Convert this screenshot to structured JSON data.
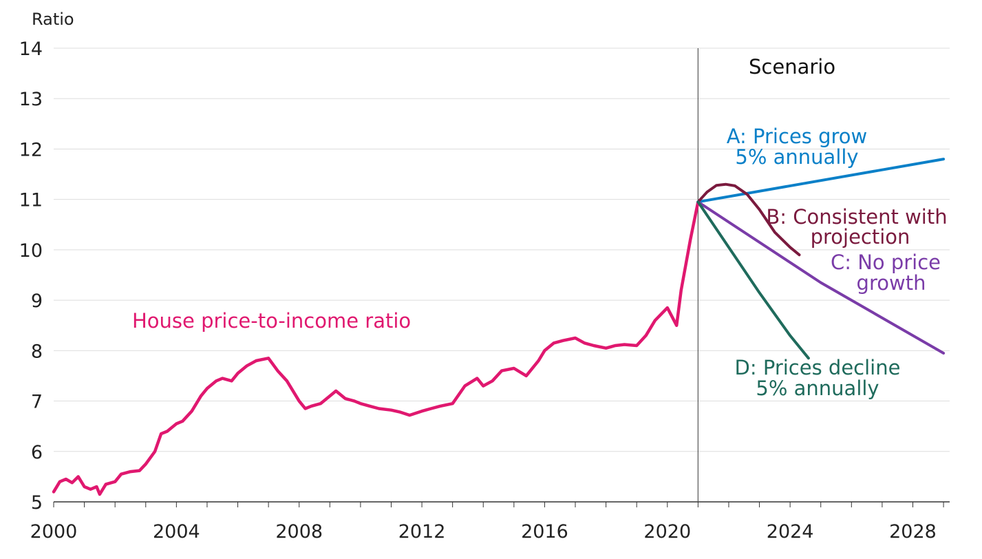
{
  "chart_data": {
    "type": "line",
    "title": "",
    "ylabel": "Ratio",
    "xlabel": "",
    "ylim": [
      5,
      14
    ],
    "xlim": [
      2000,
      2029.2
    ],
    "yticks": [
      "5",
      "6",
      "7",
      "8",
      "9",
      "10",
      "11",
      "12",
      "13",
      "14"
    ],
    "xticks": [
      "2000",
      "2004",
      "2008",
      "2012",
      "2016",
      "2020",
      "2024",
      "2028"
    ],
    "grid": true,
    "scenario_label": "Scenario",
    "scenario_start": 2021.0,
    "colors": {
      "history": "#e0186f",
      "A": "#0a80c8",
      "B": "#7a1a3e",
      "C": "#7a3ca8",
      "D": "#1f6b5c",
      "divider": "#555555",
      "grid": "#dddddd",
      "axis": "#333333"
    },
    "labels": {
      "history": "House price-to-income ratio",
      "A1": "A: Prices grow",
      "A2": "5% annually",
      "B1": "B: Consistent with",
      "B2": "projection",
      "C1": "C: No price",
      "C2": "growth",
      "D1": "D: Prices decline",
      "D2": "5% annually"
    },
    "series": [
      {
        "id": "history",
        "x": [
          2000.0,
          2000.2,
          2000.4,
          2000.6,
          2000.8,
          2001.0,
          2001.2,
          2001.4,
          2001.5,
          2001.7,
          2002.0,
          2002.2,
          2002.5,
          2002.8,
          2003.0,
          2003.3,
          2003.5,
          2003.7,
          2004.0,
          2004.2,
          2004.5,
          2004.8,
          2005.0,
          2005.3,
          2005.5,
          2005.8,
          2006.0,
          2006.3,
          2006.6,
          2007.0,
          2007.3,
          2007.6,
          2008.0,
          2008.2,
          2008.4,
          2008.7,
          2009.0,
          2009.2,
          2009.5,
          2009.8,
          2010.0,
          2010.3,
          2010.6,
          2011.0,
          2011.3,
          2011.6,
          2012.0,
          2012.3,
          2012.6,
          2013.0,
          2013.4,
          2013.8,
          2014.0,
          2014.3,
          2014.6,
          2015.0,
          2015.4,
          2015.8,
          2016.0,
          2016.3,
          2016.6,
          2017.0,
          2017.3,
          2017.6,
          2018.0,
          2018.3,
          2018.6,
          2019.0,
          2019.3,
          2019.6,
          2020.0,
          2020.3,
          2020.45,
          2020.6,
          2020.75,
          2021.0
        ],
        "y": [
          5.2,
          5.4,
          5.45,
          5.38,
          5.5,
          5.3,
          5.25,
          5.3,
          5.15,
          5.35,
          5.4,
          5.55,
          5.6,
          5.62,
          5.75,
          6.0,
          6.35,
          6.4,
          6.55,
          6.6,
          6.8,
          7.1,
          7.25,
          7.4,
          7.45,
          7.4,
          7.55,
          7.7,
          7.8,
          7.85,
          7.6,
          7.4,
          7.0,
          6.85,
          6.9,
          6.95,
          7.1,
          7.2,
          7.05,
          7.0,
          6.95,
          6.9,
          6.85,
          6.82,
          6.78,
          6.72,
          6.8,
          6.85,
          6.9,
          6.95,
          7.3,
          7.45,
          7.3,
          7.4,
          7.6,
          7.65,
          7.5,
          7.8,
          8.0,
          8.15,
          8.2,
          8.25,
          8.15,
          8.1,
          8.05,
          8.1,
          8.12,
          8.1,
          8.3,
          8.6,
          8.85,
          8.5,
          9.2,
          9.7,
          10.2,
          10.95
        ]
      },
      {
        "id": "A",
        "x": [
          2021.0,
          2029.0
        ],
        "y": [
          10.95,
          11.8
        ]
      },
      {
        "id": "B",
        "x": [
          2021.0,
          2021.3,
          2021.6,
          2021.9,
          2022.2,
          2022.6,
          2023.0,
          2023.5,
          2024.0,
          2024.3
        ],
        "y": [
          10.95,
          11.15,
          11.28,
          11.3,
          11.27,
          11.1,
          10.8,
          10.35,
          10.05,
          9.9
        ]
      },
      {
        "id": "C",
        "x": [
          2021.0,
          2025.0,
          2029.0
        ],
        "y": [
          10.95,
          9.35,
          7.95
        ]
      },
      {
        "id": "D",
        "x": [
          2021.0,
          2022.0,
          2023.0,
          2024.0,
          2024.6
        ],
        "y": [
          10.95,
          10.05,
          9.15,
          8.3,
          7.85
        ]
      }
    ]
  }
}
